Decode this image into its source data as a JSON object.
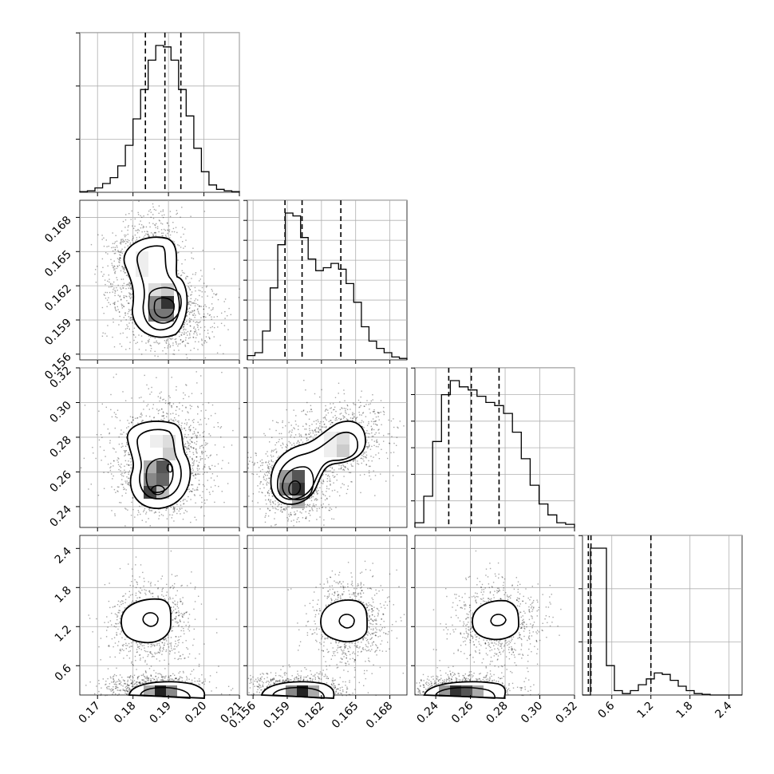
{
  "chart_data": {
    "type": "corner",
    "title": "",
    "grid": true,
    "parameters": [
      {
        "range": [
          0.165,
          0.21
        ],
        "ticks": [
          0.17,
          0.18,
          0.19,
          0.2,
          0.21
        ],
        "tick_labels": [
          "0.17",
          "0.18",
          "0.19",
          "0.20",
          "0.21"
        ],
        "quantiles": [
          0.1835,
          0.189,
          0.1935
        ],
        "hist": [
          0.5,
          1,
          3,
          6,
          10,
          18,
          32,
          50,
          70,
          90,
          100,
          99,
          90,
          70,
          52,
          30,
          14,
          5,
          2,
          1,
          0.5
        ],
        "hist_yticks": 3
      },
      {
        "range": [
          0.1555,
          0.1695
        ],
        "ticks": [
          0.156,
          0.159,
          0.162,
          0.165,
          0.168
        ],
        "tick_labels": [
          "0.156",
          "0.159",
          "0.162",
          "0.165",
          "0.168"
        ],
        "quantiles": [
          0.1588,
          0.1603,
          0.1637
        ],
        "hist": [
          3,
          5,
          20,
          50,
          80,
          102,
          100,
          85,
          70,
          62,
          64,
          67,
          63,
          53,
          40,
          23,
          13,
          8,
          5,
          2,
          1
        ],
        "hist_yticks": 8
      },
      {
        "range": [
          0.228,
          0.32
        ],
        "ticks": [
          0.24,
          0.26,
          0.28,
          0.3,
          0.32
        ],
        "tick_labels": [
          "0.24",
          "0.26",
          "0.28",
          "0.30",
          "0.32"
        ],
        "quantiles": [
          0.2475,
          0.2605,
          0.2765
        ],
        "hist": [
          3,
          20,
          55,
          85,
          94,
          90,
          88,
          84,
          80,
          78,
          73,
          61,
          44,
          27,
          15,
          8,
          3,
          2
        ],
        "hist_yticks": 6
      },
      {
        "range": [
          0.15,
          2.6
        ],
        "ticks": [
          0.6,
          1.2,
          1.8,
          2.4
        ],
        "tick_labels": [
          "0.6",
          "1.2",
          "1.8",
          "2.4"
        ],
        "quantiles": [
          0.24,
          0.28,
          1.2
        ],
        "hist": [
          0,
          100,
          100,
          20,
          3,
          1,
          3,
          7,
          11,
          15,
          14,
          10,
          6,
          3,
          1,
          0.5,
          0,
          0,
          0,
          0
        ],
        "hist_yticks": 3
      }
    ],
    "pairs": [
      {
        "row": 1,
        "col": 0,
        "mode": 0.1895,
        "samples": 3500
      },
      {
        "row": 2,
        "col": 0,
        "mode": 0.251,
        "samples": 3500
      },
      {
        "row": 2,
        "col": 1,
        "mode": 0.251,
        "samples": 3500
      },
      {
        "row": 3,
        "col": 0,
        "mode": 0.25,
        "samples": 3500
      },
      {
        "row": 3,
        "col": 1,
        "mode": 0.25,
        "samples": 3500
      },
      {
        "row": 3,
        "col": 2,
        "mode": 0.25,
        "samples": 3500
      }
    ]
  }
}
